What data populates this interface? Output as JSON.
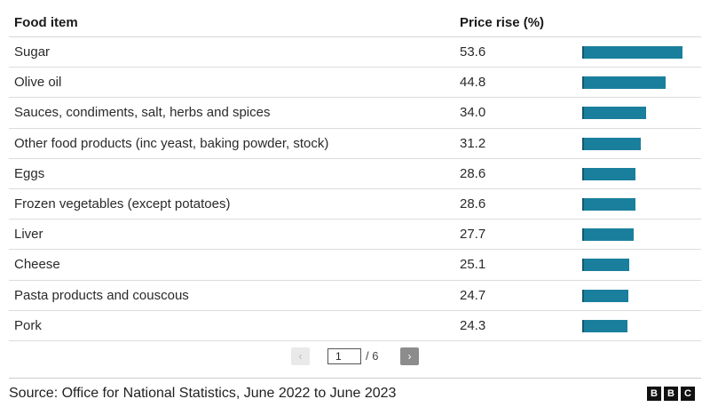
{
  "table": {
    "col_item": "Food item",
    "col_price": "Price rise (%)"
  },
  "chart_data": {
    "type": "bar",
    "orientation": "horizontal",
    "columns": [
      "Food item",
      "Price rise (%)"
    ],
    "categories": [
      "Sugar",
      "Olive oil",
      "Sauces, condiments, salt, herbs and spices",
      "Other food products (inc yeast, baking powder, stock)",
      "Eggs",
      "Frozen vegetables (except potatoes)",
      "Liver",
      "Cheese",
      "Pasta products and couscous",
      "Pork"
    ],
    "values": [
      53.6,
      44.8,
      34.0,
      31.2,
      28.6,
      28.6,
      27.7,
      25.1,
      24.7,
      24.3
    ],
    "value_labels": [
      "53.6",
      "44.8",
      "34.0",
      "31.2",
      "28.6",
      "28.6",
      "27.7",
      "25.1",
      "24.7",
      "24.3"
    ],
    "bar_color": "#1a7f9c",
    "xlim": [
      0,
      55
    ]
  },
  "pagination": {
    "prev_icon": "chevron-left-icon",
    "next_icon": "chevron-right-icon",
    "prev_glyph": "‹",
    "next_glyph": "›",
    "current_page": "1",
    "total_label": "/ 6"
  },
  "footer": {
    "source": "Source: Office for National Statistics, June 2022 to June 2023",
    "logo": [
      "B",
      "B",
      "C"
    ]
  }
}
